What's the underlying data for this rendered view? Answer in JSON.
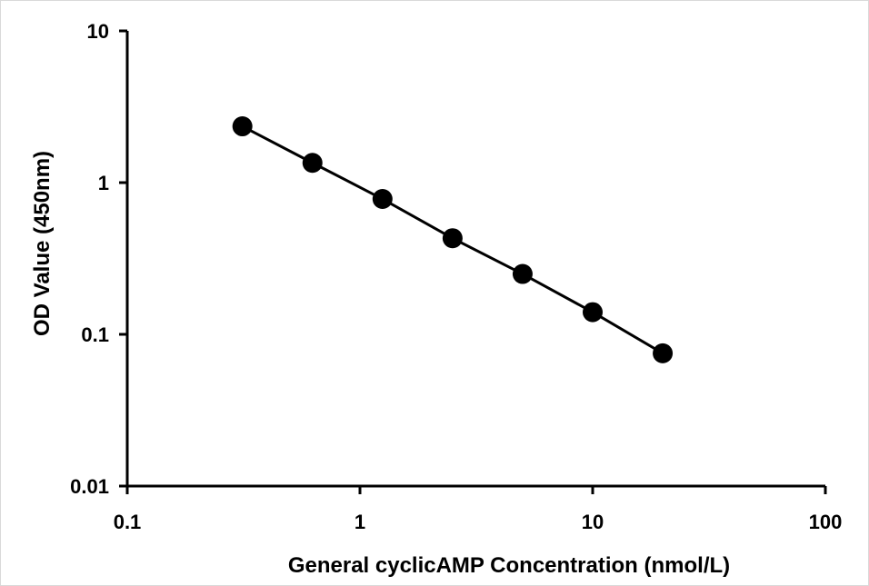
{
  "chart_data": {
    "type": "scatter",
    "title": "",
    "xlabel": "General cyclicAMP Concentration (nmol/L)",
    "ylabel": "OD Value (450nm)",
    "xscale": "log",
    "yscale": "log",
    "xlim": [
      0.1,
      100
    ],
    "ylim": [
      0.01,
      10
    ],
    "x_ticks": [
      0.1,
      1,
      10,
      100
    ],
    "x_tick_labels": [
      "0.1",
      "1",
      "10",
      "100"
    ],
    "y_ticks": [
      0.01,
      0.1,
      1,
      10
    ],
    "y_tick_labels": [
      "0.01",
      "0.1",
      "1",
      "10"
    ],
    "grid": false,
    "series": [
      {
        "x": [
          0.3125,
          0.625,
          1.25,
          2.5,
          5,
          10,
          20
        ],
        "y": [
          2.35,
          1.35,
          0.78,
          0.43,
          0.25,
          0.14,
          0.075
        ],
        "marker": "filled-circle",
        "color": "#000000",
        "line": true,
        "line_color": "#000000"
      }
    ]
  }
}
